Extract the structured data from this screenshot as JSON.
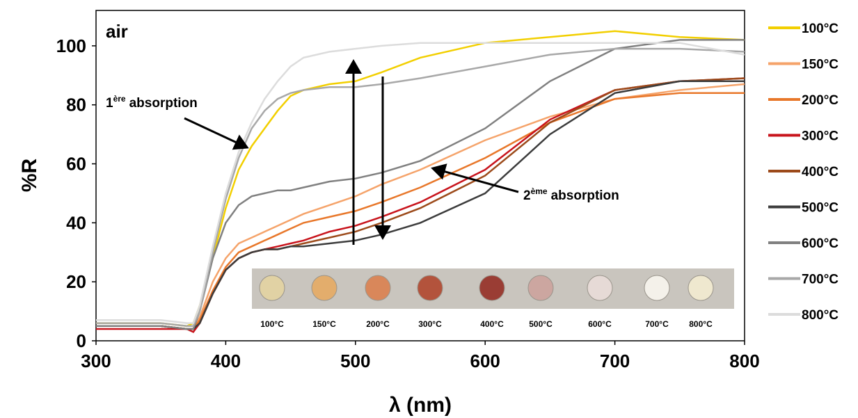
{
  "chart_data": {
    "type": "line",
    "xlabel": "λ (nm)",
    "ylabel": "%R",
    "xlim": [
      300,
      800
    ],
    "ylim": [
      0,
      112
    ],
    "xticks": [
      300,
      400,
      500,
      600,
      700,
      800
    ],
    "yticks": [
      0,
      20,
      40,
      60,
      80,
      100
    ],
    "annotations": [
      {
        "text": "air"
      },
      {
        "number": "1",
        "superscript": "ère",
        "text": "absorption"
      },
      {
        "number": "2",
        "superscript": "ème",
        "text": "absorption"
      }
    ],
    "inset_labels": [
      "100°C",
      "150°C",
      "200°C",
      "300°C",
      "400°C",
      "500°C",
      "600°C",
      "700°C",
      "800°C"
    ],
    "x": [
      300,
      350,
      370,
      375,
      380,
      390,
      400,
      410,
      420,
      430,
      440,
      450,
      460,
      480,
      500,
      520,
      550,
      600,
      650,
      700,
      750,
      800
    ],
    "series": [
      {
        "name": "100°C",
        "color": "#f2cf00",
        "values": [
          6,
          6,
          5,
          6,
          12,
          28,
          45,
          58,
          66,
          72,
          78,
          83,
          85,
          87,
          88,
          91,
          96,
          101,
          103,
          105,
          103,
          102
        ]
      },
      {
        "name": "150°C",
        "color": "#f5a36a",
        "values": [
          5,
          5,
          4,
          4,
          8,
          20,
          28,
          33,
          35,
          37,
          39,
          41,
          43,
          46,
          49,
          53,
          58,
          68,
          76,
          82,
          85,
          87
        ]
      },
      {
        "name": "200°C",
        "color": "#e8772a",
        "values": [
          5,
          5,
          4,
          4,
          7,
          17,
          25,
          30,
          32,
          34,
          36,
          38,
          40,
          42,
          44,
          47,
          52,
          62,
          74,
          82,
          84,
          84
        ]
      },
      {
        "name": "300°C",
        "color": "#c8141c",
        "values": [
          4,
          4,
          4,
          3,
          6,
          16,
          24,
          28,
          30,
          31,
          32,
          33,
          34,
          37,
          39,
          42,
          47,
          58,
          75,
          85,
          88,
          89
        ]
      },
      {
        "name": "400°C",
        "color": "#9c4a1a",
        "values": [
          5,
          5,
          4,
          4,
          6,
          16,
          24,
          28,
          30,
          31,
          31,
          32,
          33,
          35,
          37,
          40,
          45,
          56,
          74,
          85,
          88,
          89
        ]
      },
      {
        "name": "500°C",
        "color": "#3c3c3c",
        "values": [
          5,
          5,
          4,
          4,
          6,
          16,
          24,
          28,
          30,
          31,
          31,
          32,
          32,
          33,
          34,
          36,
          40,
          50,
          70,
          84,
          88,
          88
        ]
      },
      {
        "name": "600°C",
        "color": "#808080",
        "values": [
          5,
          5,
          4,
          4,
          10,
          28,
          40,
          46,
          49,
          50,
          51,
          51,
          52,
          54,
          55,
          57,
          61,
          72,
          88,
          99,
          102,
          102
        ]
      },
      {
        "name": "700°C",
        "color": "#a8a8a8",
        "values": [
          6,
          6,
          5,
          5,
          10,
          30,
          48,
          62,
          72,
          78,
          82,
          84,
          85,
          86,
          86,
          87,
          89,
          93,
          97,
          99,
          99,
          98
        ]
      },
      {
        "name": "800°C",
        "color": "#dcdcdc",
        "values": [
          7,
          7,
          6,
          6,
          12,
          32,
          50,
          64,
          74,
          82,
          88,
          93,
          96,
          98,
          99,
          100,
          101,
          101,
          101,
          101,
          101,
          97
        ]
      }
    ]
  }
}
